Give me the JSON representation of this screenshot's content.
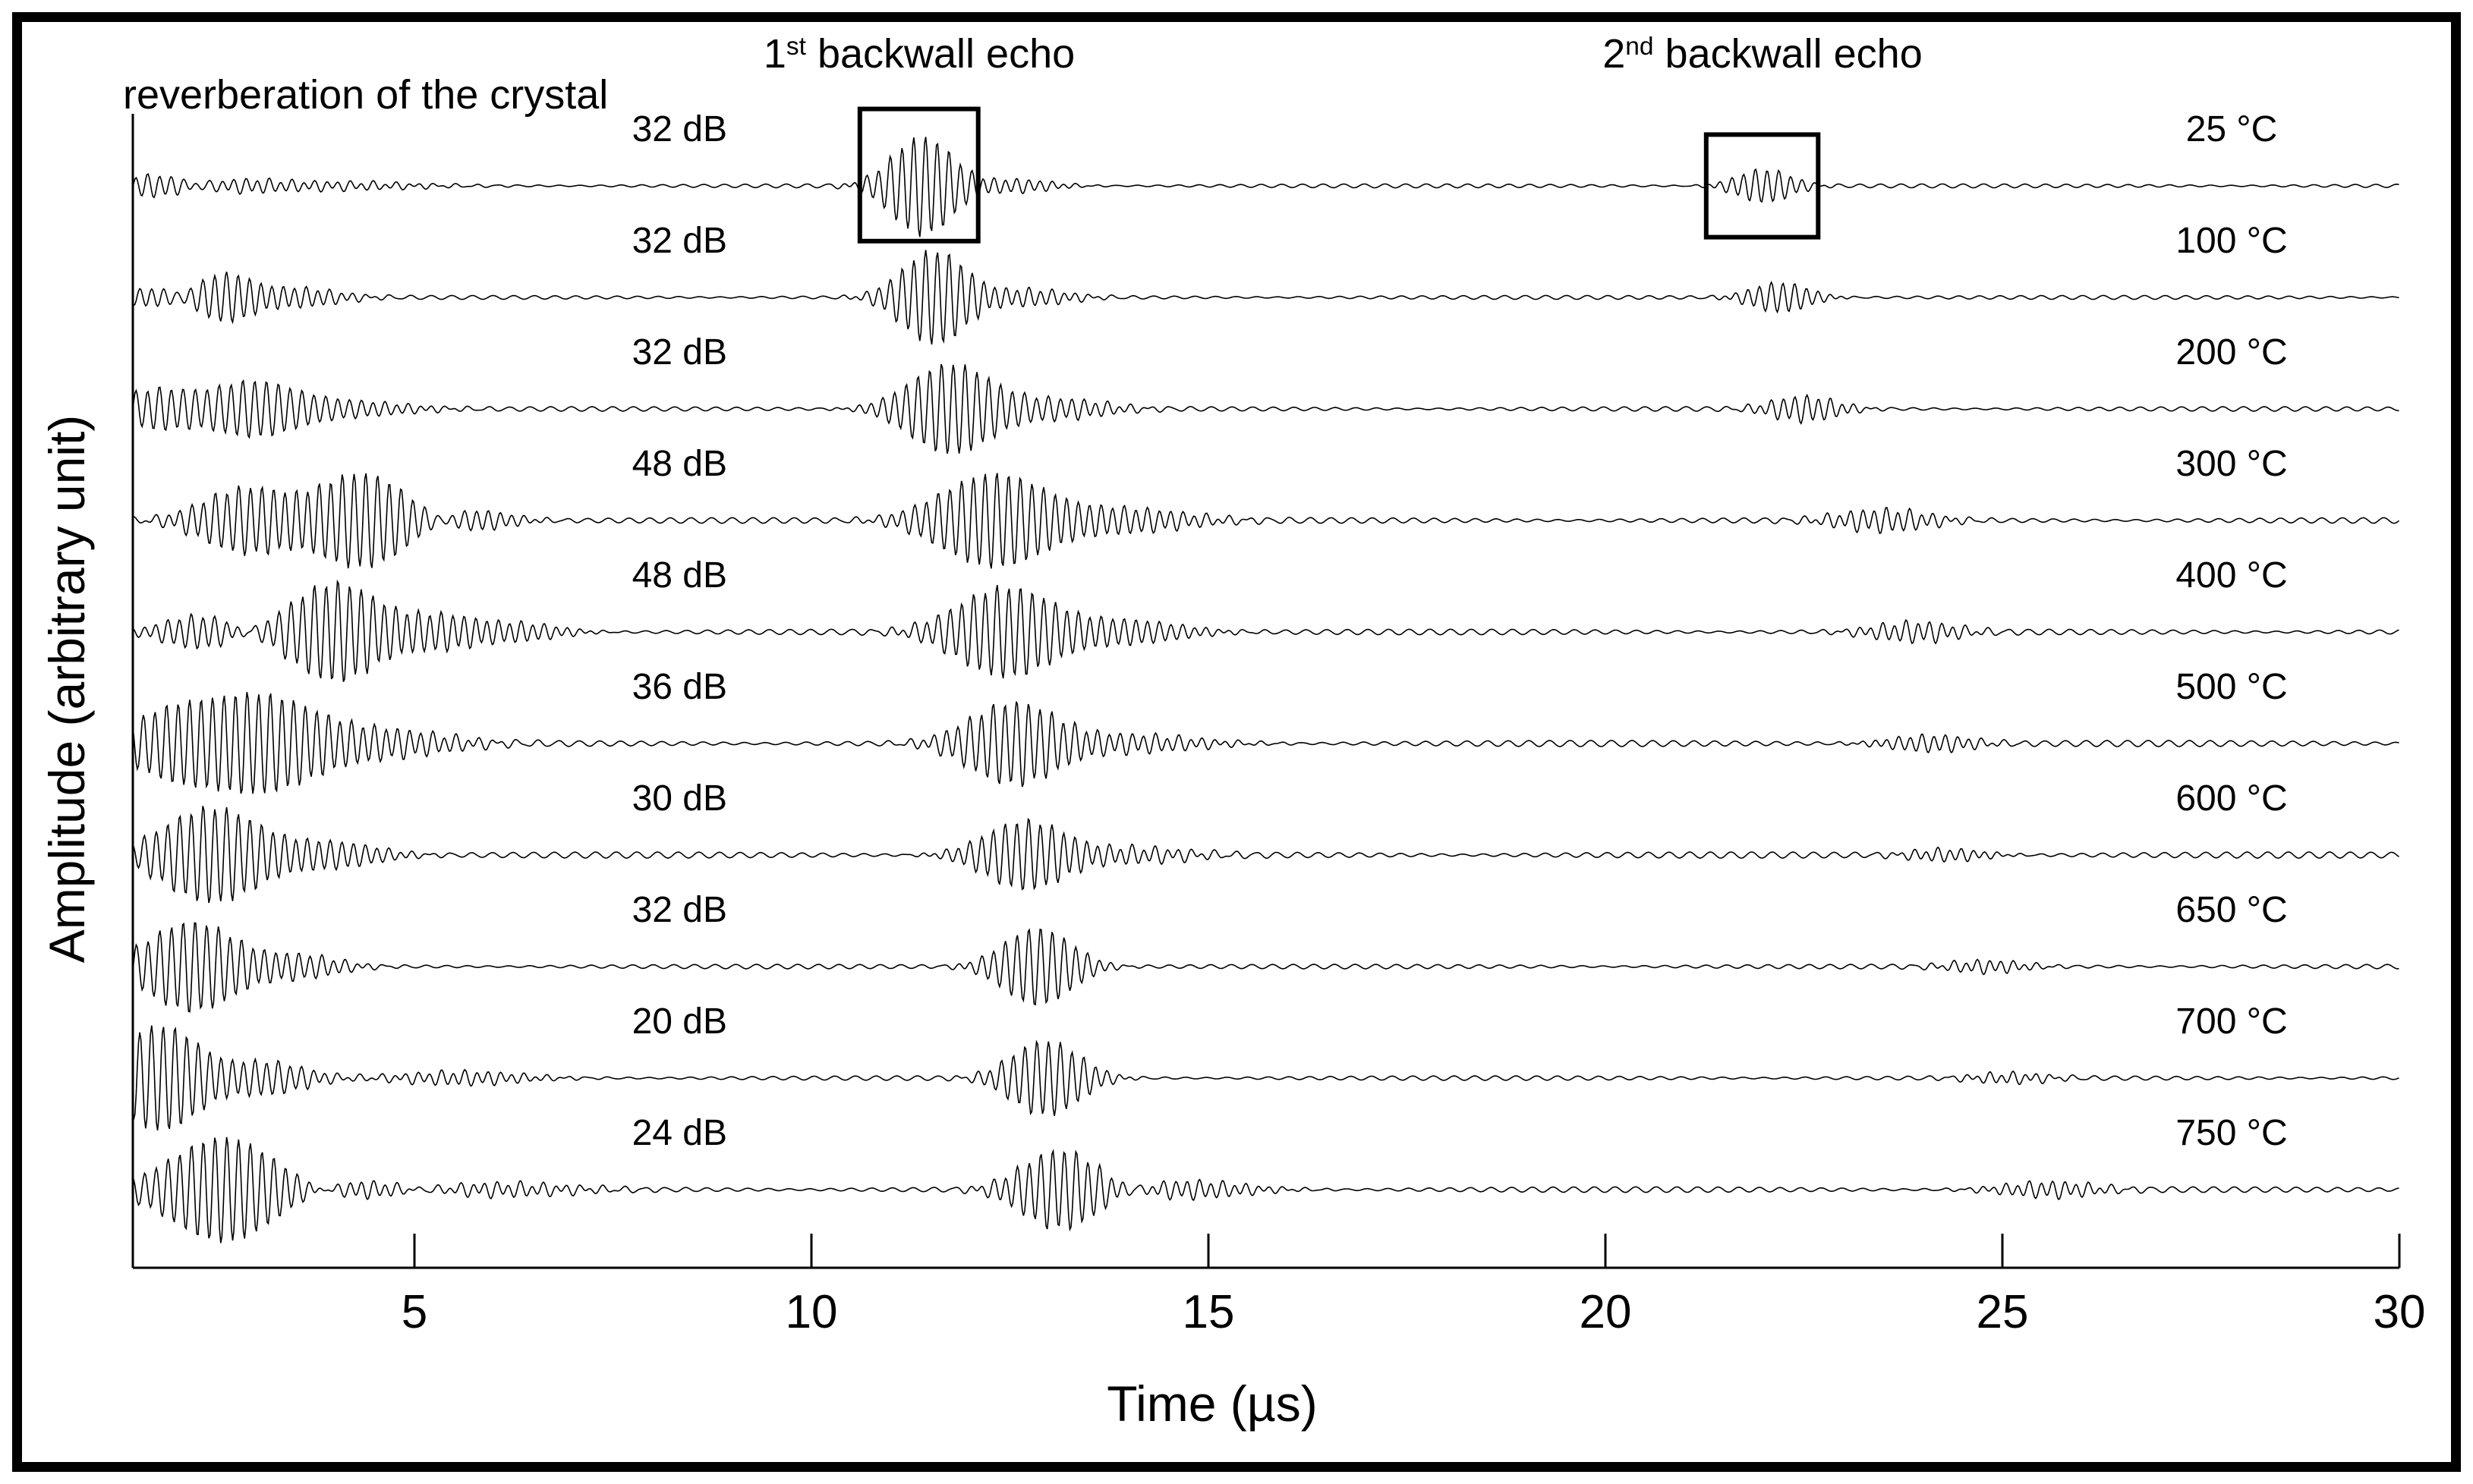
{
  "figure": {
    "background": "#ffffff",
    "frame_color": "#000000",
    "line_color": "#000000"
  },
  "annotations": {
    "reverberation": "reverberation of the crystal",
    "first_echo": {
      "base": "1",
      "sup": "st",
      "rest": " backwall echo"
    },
    "second_echo": {
      "base": "2",
      "sup": "nd",
      "rest": " backwall echo"
    }
  },
  "chart_data": {
    "type": "line",
    "title": "",
    "xlabel": "Time (µs)",
    "ylabel": "Amplitude (arbitrary unit)",
    "xlim": [
      1.45,
      30
    ],
    "x_ticks": [
      "5",
      "10",
      "15",
      "20",
      "25",
      "30"
    ],
    "x_tick_values": [
      5,
      10,
      15,
      20,
      25,
      30
    ],
    "grid": false,
    "legend": "none",
    "carrier_period_us": 0.148,
    "ripple_period_us": 0.26,
    "amp_unit_note": "amplitudes are fractions of half the vertical spacing between stacked traces (arbitrary units)",
    "packet_fields": "each packet = [center_time_us, gaussian_sigma_us, amplitude]",
    "series": [
      {
        "temperature": "25 °C",
        "gain": "32 dB",
        "first_echo_us": 11.4,
        "second_echo_us": 22.0,
        "ripple_amp": 0.035,
        "packets": [
          [
            1.75,
            0.45,
            0.22
          ],
          [
            2.7,
            0.6,
            0.12
          ],
          [
            4.0,
            0.9,
            0.07
          ],
          [
            11.4,
            0.38,
            0.89
          ],
          [
            12.55,
            0.45,
            0.12
          ],
          [
            22.0,
            0.33,
            0.3
          ]
        ]
      },
      {
        "temperature": "100 °C",
        "gain": "32 dB",
        "first_echo_us": 11.55,
        "second_echo_us": 22.2,
        "ripple_amp": 0.035,
        "packets": [
          [
            1.8,
            0.4,
            0.19
          ],
          [
            2.6,
            0.38,
            0.46
          ],
          [
            3.45,
            0.55,
            0.18
          ],
          [
            11.55,
            0.4,
            0.85
          ],
          [
            12.7,
            0.5,
            0.15
          ],
          [
            22.2,
            0.35,
            0.27
          ]
        ]
      },
      {
        "temperature": "200 °C",
        "gain": "32 dB",
        "first_echo_us": 11.75,
        "second_echo_us": 22.5,
        "ripple_amp": 0.04,
        "packets": [
          [
            1.75,
            0.45,
            0.35
          ],
          [
            2.95,
            0.5,
            0.45
          ],
          [
            4.0,
            0.8,
            0.15
          ],
          [
            11.75,
            0.5,
            0.81
          ],
          [
            13.1,
            0.6,
            0.18
          ],
          [
            22.5,
            0.4,
            0.23
          ]
        ]
      },
      {
        "temperature": "300 °C",
        "gain": "48 dB",
        "first_echo_us": 12.3,
        "second_echo_us": 23.5,
        "ripple_amp": 0.05,
        "packets": [
          [
            2.9,
            0.55,
            0.59
          ],
          [
            4.35,
            0.6,
            0.86
          ],
          [
            5.6,
            0.5,
            0.24
          ],
          [
            12.3,
            0.65,
            0.84
          ],
          [
            13.9,
            0.8,
            0.22
          ],
          [
            23.5,
            0.55,
            0.2
          ]
        ]
      },
      {
        "temperature": "400 °C",
        "gain": "48 dB",
        "first_echo_us": 12.45,
        "second_echo_us": 23.9,
        "ripple_amp": 0.05,
        "packets": [
          [
            2.3,
            0.45,
            0.3
          ],
          [
            4.0,
            0.55,
            0.89
          ],
          [
            5.3,
            0.55,
            0.32
          ],
          [
            6.3,
            0.5,
            0.16
          ],
          [
            12.45,
            0.6,
            0.81
          ],
          [
            13.9,
            0.7,
            0.22
          ],
          [
            23.9,
            0.5,
            0.18
          ]
        ]
      },
      {
        "temperature": "500 °C",
        "gain": "36 dB",
        "first_echo_us": 12.55,
        "second_echo_us": 24.1,
        "ripple_amp": 0.055,
        "packets": [
          [
            2.0,
            0.55,
            0.61
          ],
          [
            3.0,
            0.75,
            0.89
          ],
          [
            4.6,
            0.8,
            0.24
          ],
          [
            12.55,
            0.55,
            0.74
          ],
          [
            14.0,
            0.8,
            0.16
          ],
          [
            24.1,
            0.5,
            0.15
          ]
        ]
      },
      {
        "temperature": "600 °C",
        "gain": "30 dB",
        "first_echo_us": 12.7,
        "second_echo_us": 24.3,
        "ripple_amp": 0.055,
        "packets": [
          [
            2.45,
            0.6,
            0.86
          ],
          [
            3.9,
            0.6,
            0.24
          ],
          [
            12.7,
            0.5,
            0.62
          ],
          [
            14.0,
            0.7,
            0.14
          ],
          [
            24.3,
            0.45,
            0.11
          ]
        ]
      },
      {
        "temperature": "650 °C",
        "gain": "32 dB",
        "first_echo_us": 12.85,
        "second_echo_us": 24.8,
        "ripple_amp": 0.04,
        "packets": [
          [
            2.2,
            0.55,
            0.81
          ],
          [
            3.5,
            0.5,
            0.22
          ],
          [
            12.85,
            0.42,
            0.7
          ],
          [
            24.8,
            0.45,
            0.11
          ]
        ]
      },
      {
        "temperature": "700 °C",
        "gain": "20 dB",
        "first_echo_us": 12.95,
        "second_echo_us": 25.1,
        "ripple_amp": 0.04,
        "packets": [
          [
            1.8,
            0.5,
            0.95
          ],
          [
            3.1,
            0.5,
            0.3
          ],
          [
            5.6,
            0.7,
            0.12
          ],
          [
            12.95,
            0.42,
            0.68
          ],
          [
            25.1,
            0.45,
            0.09
          ]
        ]
      },
      {
        "temperature": "750 °C",
        "gain": "24 dB",
        "first_echo_us": 13.15,
        "second_echo_us": 25.6,
        "ripple_amp": 0.05,
        "packets": [
          [
            2.6,
            0.65,
            0.95
          ],
          [
            4.3,
            0.6,
            0.19
          ],
          [
            6.0,
            0.9,
            0.12
          ],
          [
            13.15,
            0.48,
            0.73
          ],
          [
            14.7,
            0.7,
            0.16
          ],
          [
            25.6,
            0.55,
            0.14
          ]
        ]
      }
    ],
    "highlight_boxes": [
      {
        "around": "first-echo",
        "series_index": 0,
        "t_min": 10.61,
        "t_max": 12.1,
        "amp_top": 1.38,
        "amp_bottom": 0.99
      },
      {
        "around": "second-echo",
        "series_index": 0,
        "t_min": 21.27,
        "t_max": 22.68,
        "amp_top": 0.92,
        "amp_bottom": 0.92
      }
    ]
  }
}
